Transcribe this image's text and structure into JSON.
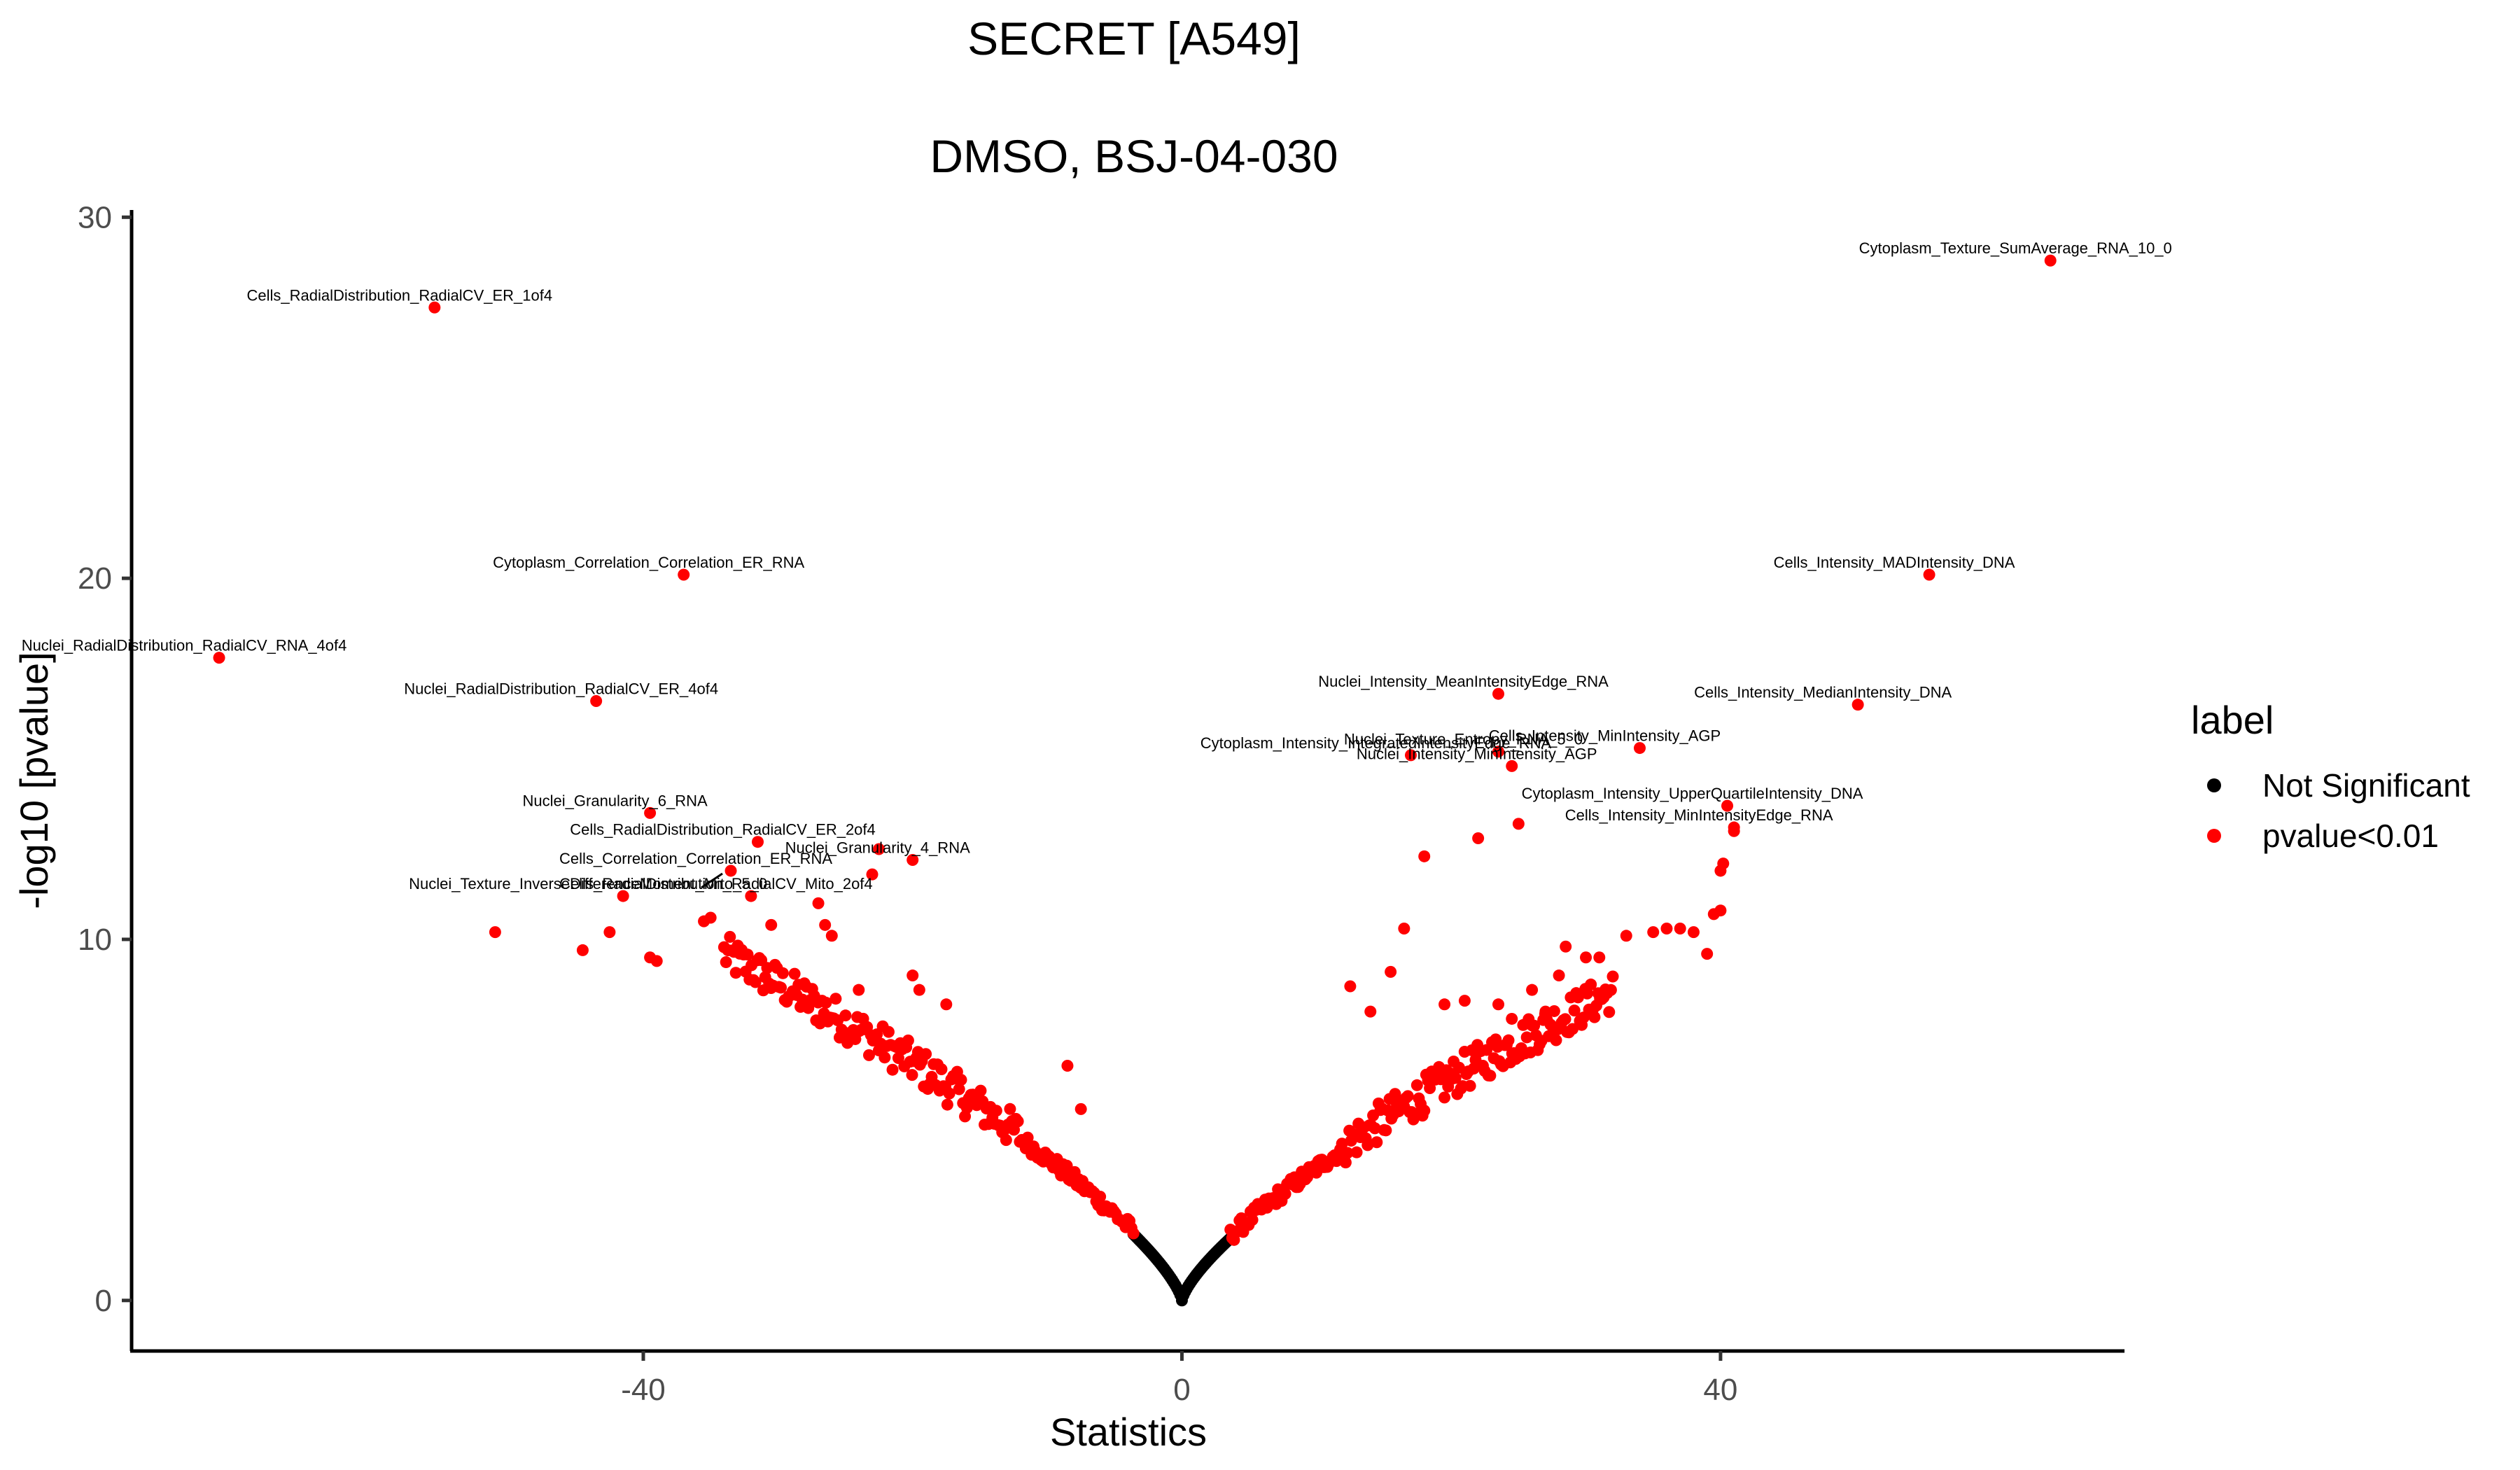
{
  "chart_data": {
    "type": "scatter",
    "title": "SECRET [A549]",
    "subtitle": "DMSO, BSJ-04-030",
    "xlabel": "Statistics",
    "ylabel": "-log10 [pvalue]",
    "xlim": [
      -78,
      70
    ],
    "ylim": [
      -1.4,
      30.2
    ],
    "xticks": [
      -40,
      0,
      40
    ],
    "yticks": [
      0,
      10,
      20,
      30
    ],
    "grid": false,
    "legend": {
      "title": "label",
      "position": "right",
      "entries": [
        {
          "name": "Not Significant",
          "color": "#000000"
        },
        {
          "name": "pvalue<0.01",
          "color": "#ff0000"
        }
      ]
    },
    "labeled_points": [
      {
        "label": "Cytoplasm_Texture_SumAverage_RNA_10_0",
        "x": 64.5,
        "y": 28.8
      },
      {
        "label": "Cells_RadialDistribution_RadialCV_ER_1of4",
        "x": -55.5,
        "y": 27.5
      },
      {
        "label": "Cytoplasm_Correlation_Correlation_ER_RNA",
        "x": -37.0,
        "y": 20.1
      },
      {
        "label": "Cells_Intensity_MADIntensity_DNA",
        "x": 55.5,
        "y": 20.1
      },
      {
        "label": "Nuclei_RadialDistribution_RadialCV_RNA_4of4",
        "x": -71.5,
        "y": 17.8
      },
      {
        "label": "Nuclei_Intensity_MeanIntensityEdge_RNA",
        "x": 23.5,
        "y": 16.8
      },
      {
        "label": "Nuclei_RadialDistribution_RadialCV_ER_4of4",
        "x": -43.5,
        "y": 16.6
      },
      {
        "label": "Cells_Intensity_MedianIntensity_DNA",
        "x": 50.2,
        "y": 16.5
      },
      {
        "label": "Nuclei_Texture_Entropy_RNA_5_0",
        "x": 23.5,
        "y": 15.2
      },
      {
        "label": "Cytoplasm_Intensity_IntegratedIntensityEdge_RNA",
        "x": 17.0,
        "y": 15.1
      },
      {
        "label": "Cells_Intensity_MinIntensity_AGP",
        "x": 34.0,
        "y": 15.3
      },
      {
        "label": "Nuclei_Intensity_MinIntensity_AGP",
        "x": 24.5,
        "y": 14.8
      },
      {
        "label": "Cytoplasm_Intensity_UpperQuartileIntensity_DNA",
        "x": 40.5,
        "y": 13.7
      },
      {
        "label": "Nuclei_Granularity_6_RNA",
        "x": -39.5,
        "y": 13.5
      },
      {
        "label": "Cells_Intensity_MinIntensityEdge_RNA",
        "x": 41.0,
        "y": 13.1
      },
      {
        "label": "Cells_RadialDistribution_RadialCV_ER_2of4",
        "x": -31.5,
        "y": 12.7
      },
      {
        "label": "Cells_Correlation_Correlation_ER_RNA",
        "x": -33.5,
        "y": 11.9
      },
      {
        "label": "Nuclei_Granularity_4_RNA",
        "x": -20.0,
        "y": 12.2
      },
      {
        "label": "Nuclei_Texture_InverseDifferenceMoment_Mito_5_0",
        "x": -41.5,
        "y": 11.2
      },
      {
        "label": "Cells_RadialDistribution_RadialCV_Mito_2of4",
        "x": -32.0,
        "y": 11.2
      }
    ],
    "extra_points": [
      [
        -51,
        10.2
      ],
      [
        -44.5,
        9.7
      ],
      [
        -42.5,
        10.2
      ],
      [
        -39.5,
        9.5
      ],
      [
        -39,
        9.4
      ],
      [
        -35.5,
        10.5
      ],
      [
        -35,
        10.6
      ],
      [
        -32.5,
        9.6
      ],
      [
        -30.5,
        10.4
      ],
      [
        -27,
        11.0
      ],
      [
        -26.5,
        10.4
      ],
      [
        -26,
        10.1
      ],
      [
        -23,
        11.8
      ],
      [
        -22.5,
        12.5
      ],
      [
        -19.5,
        8.6
      ],
      [
        -17.5,
        8.2
      ],
      [
        -8.5,
        6.5
      ],
      [
        -7.5,
        5.3
      ],
      [
        -20,
        9.0
      ],
      [
        -24,
        8.6
      ],
      [
        12.5,
        8.7
      ],
      [
        14,
        8.0
      ],
      [
        15.5,
        9.1
      ],
      [
        16.5,
        10.3
      ],
      [
        18,
        12.3
      ],
      [
        22,
        12.8
      ],
      [
        25,
        13.2
      ],
      [
        19.5,
        8.2
      ],
      [
        21,
        8.3
      ],
      [
        26,
        8.6
      ],
      [
        28,
        9.0
      ],
      [
        28.5,
        9.8
      ],
      [
        30,
        9.5
      ],
      [
        31,
        9.5
      ],
      [
        33,
        10.1
      ],
      [
        35,
        10.2
      ],
      [
        36,
        10.3
      ],
      [
        37,
        10.3
      ],
      [
        38,
        10.2
      ],
      [
        39.5,
        10.7
      ],
      [
        40,
        10.8
      ],
      [
        40,
        11.9
      ],
      [
        40.2,
        12.1
      ],
      [
        41,
        13.0
      ],
      [
        39,
        9.6
      ],
      [
        27,
        8.0
      ],
      [
        23.5,
        8.2
      ],
      [
        24.5,
        7.8
      ]
    ],
    "curve_series": [
      {
        "name": "pvalue<0.01",
        "side": "left",
        "x_from": -34,
        "x_to": -3.6,
        "y_at_edge": 8.5
      },
      {
        "name": "pvalue<0.01",
        "side": "right",
        "x_from": 3.6,
        "x_to": 32,
        "y_at_edge": 7.6
      },
      {
        "name": "Not Significant",
        "side": "both",
        "x_from": -3.6,
        "x_to": 3.6
      }
    ]
  }
}
